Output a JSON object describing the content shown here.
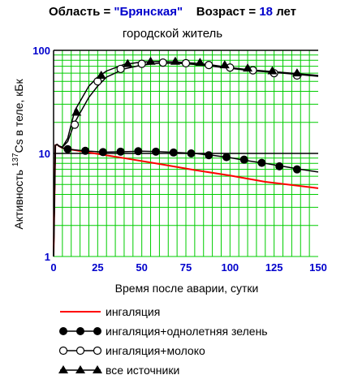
{
  "header": {
    "region_label": "Область = ",
    "region_value": "\"Брянская\"",
    "age_label": "Возраст = ",
    "age_value": "18",
    "age_unit": " лет",
    "subtitle": "городской житель"
  },
  "colors": {
    "grid": "#00cc00",
    "ticks": "#0000cc",
    "inhalation": "#ff0000",
    "series": "#000000"
  },
  "chart_data": {
    "type": "line",
    "title": "Область = \"Брянская\"   Возраст = 18 лет",
    "subtitle": "городской житель",
    "xlabel": "Время после аварии, сутки",
    "ylabel_prefix": "Активность ",
    "ylabel_sup": "137",
    "ylabel_rest": "Cs в теле, кБк",
    "xlim": [
      0,
      150
    ],
    "ylim": [
      1,
      100
    ],
    "y_scale": "log",
    "x_ticks": [
      0,
      25,
      50,
      75,
      100,
      125,
      150
    ],
    "y_ticks": [
      1,
      10,
      100
    ],
    "grid": true,
    "legend_position": "bottom",
    "series": [
      {
        "name": "ингаляция",
        "marker": "none",
        "color": "#ff0000",
        "x": [
          0,
          1,
          2,
          3,
          5,
          10,
          20,
          40,
          60,
          80,
          100,
          120,
          150
        ],
        "y": [
          1,
          12,
          12.2,
          11.8,
          11.3,
          10.9,
          10.2,
          9.0,
          7.9,
          6.9,
          6.1,
          5.3,
          4.6
        ]
      },
      {
        "name": "ингаляция+однолетняя зелень",
        "marker": "filled-circle",
        "color": "#000000",
        "x": [
          0,
          1,
          2,
          3,
          5,
          8,
          10,
          20,
          30,
          40,
          50,
          60,
          70,
          80,
          90,
          100,
          110,
          120,
          130,
          140,
          150
        ],
        "y": [
          1,
          12,
          12.2,
          11.8,
          11.3,
          11,
          10.9,
          10.5,
          10.3,
          10.4,
          10.5,
          10.4,
          10.2,
          10.0,
          9.6,
          9.1,
          8.5,
          8.0,
          7.5,
          7.0,
          6.6
        ],
        "marker_x": [
          8,
          18,
          28,
          38,
          48,
          58,
          68,
          78,
          88,
          98,
          108,
          118,
          128,
          138
        ],
        "marker_y": [
          11.0,
          10.6,
          10.3,
          10.4,
          10.5,
          10.4,
          10.2,
          10.0,
          9.6,
          9.2,
          8.7,
          8.1,
          7.5,
          7.0
        ]
      },
      {
        "name": "ингаляция+молоко",
        "marker": "open-circle",
        "color": "#000000",
        "x": [
          0,
          1,
          2,
          3,
          5,
          8,
          12,
          20,
          25,
          30,
          40,
          50,
          60,
          70,
          80,
          90,
          100,
          110,
          120,
          130,
          140,
          150
        ],
        "y": [
          1,
          12,
          12.2,
          11.8,
          11.5,
          13,
          20,
          35,
          45,
          55,
          66,
          72,
          75,
          75,
          73,
          70,
          67,
          64,
          62,
          60,
          58,
          56
        ],
        "marker_x": [
          12,
          25,
          38,
          50,
          62,
          75,
          88,
          100,
          113,
          125,
          138
        ],
        "marker_y": [
          19,
          50,
          66,
          74,
          76,
          75,
          72,
          68,
          64,
          60,
          57
        ]
      },
      {
        "name": "все источники",
        "marker": "filled-triangle",
        "color": "#000000",
        "x": [
          0,
          1,
          2,
          3,
          5,
          8,
          12,
          20,
          25,
          30,
          40,
          50,
          60,
          70,
          80,
          90,
          100,
          110,
          120,
          130,
          140,
          150
        ],
        "y": [
          1,
          12,
          12.2,
          11.8,
          11.5,
          14,
          26,
          45,
          55,
          63,
          73,
          77,
          78,
          77,
          75,
          72,
          68,
          65,
          63,
          61,
          59,
          57
        ],
        "marker_x": [
          13,
          27,
          42,
          55,
          69,
          83,
          97,
          110,
          124,
          138
        ],
        "marker_y": [
          25,
          57,
          74,
          78,
          78,
          76,
          72,
          67,
          63,
          60
        ]
      }
    ]
  }
}
